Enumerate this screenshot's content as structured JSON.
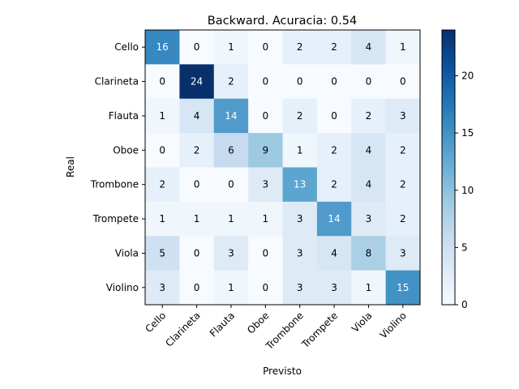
{
  "chart_data": {
    "type": "heatmap",
    "title": "Backward. Acuracia: 0.54",
    "xlabel": "Previsto",
    "ylabel": "Real",
    "x_categories": [
      "Cello",
      "Clarineta",
      "Flauta",
      "Oboe",
      "Trombone",
      "Trompete",
      "Viola",
      "Violino"
    ],
    "y_categories": [
      "Cello",
      "Clarineta",
      "Flauta",
      "Oboe",
      "Trombone",
      "Trompete",
      "Viola",
      "Violino"
    ],
    "values": [
      [
        16,
        0,
        1,
        0,
        2,
        2,
        4,
        1
      ],
      [
        0,
        24,
        2,
        0,
        0,
        0,
        0,
        0
      ],
      [
        1,
        4,
        14,
        0,
        2,
        0,
        2,
        3
      ],
      [
        0,
        2,
        6,
        9,
        1,
        2,
        4,
        2
      ],
      [
        2,
        0,
        0,
        3,
        13,
        2,
        4,
        2
      ],
      [
        1,
        1,
        1,
        1,
        3,
        14,
        3,
        2
      ],
      [
        5,
        0,
        3,
        0,
        3,
        4,
        8,
        3
      ],
      [
        3,
        0,
        1,
        0,
        3,
        3,
        1,
        15
      ]
    ],
    "colormap": "Blues",
    "vmin": 0,
    "vmax": 24,
    "colorbar_ticks": [
      0,
      5,
      10,
      15,
      20
    ],
    "grid": false
  }
}
